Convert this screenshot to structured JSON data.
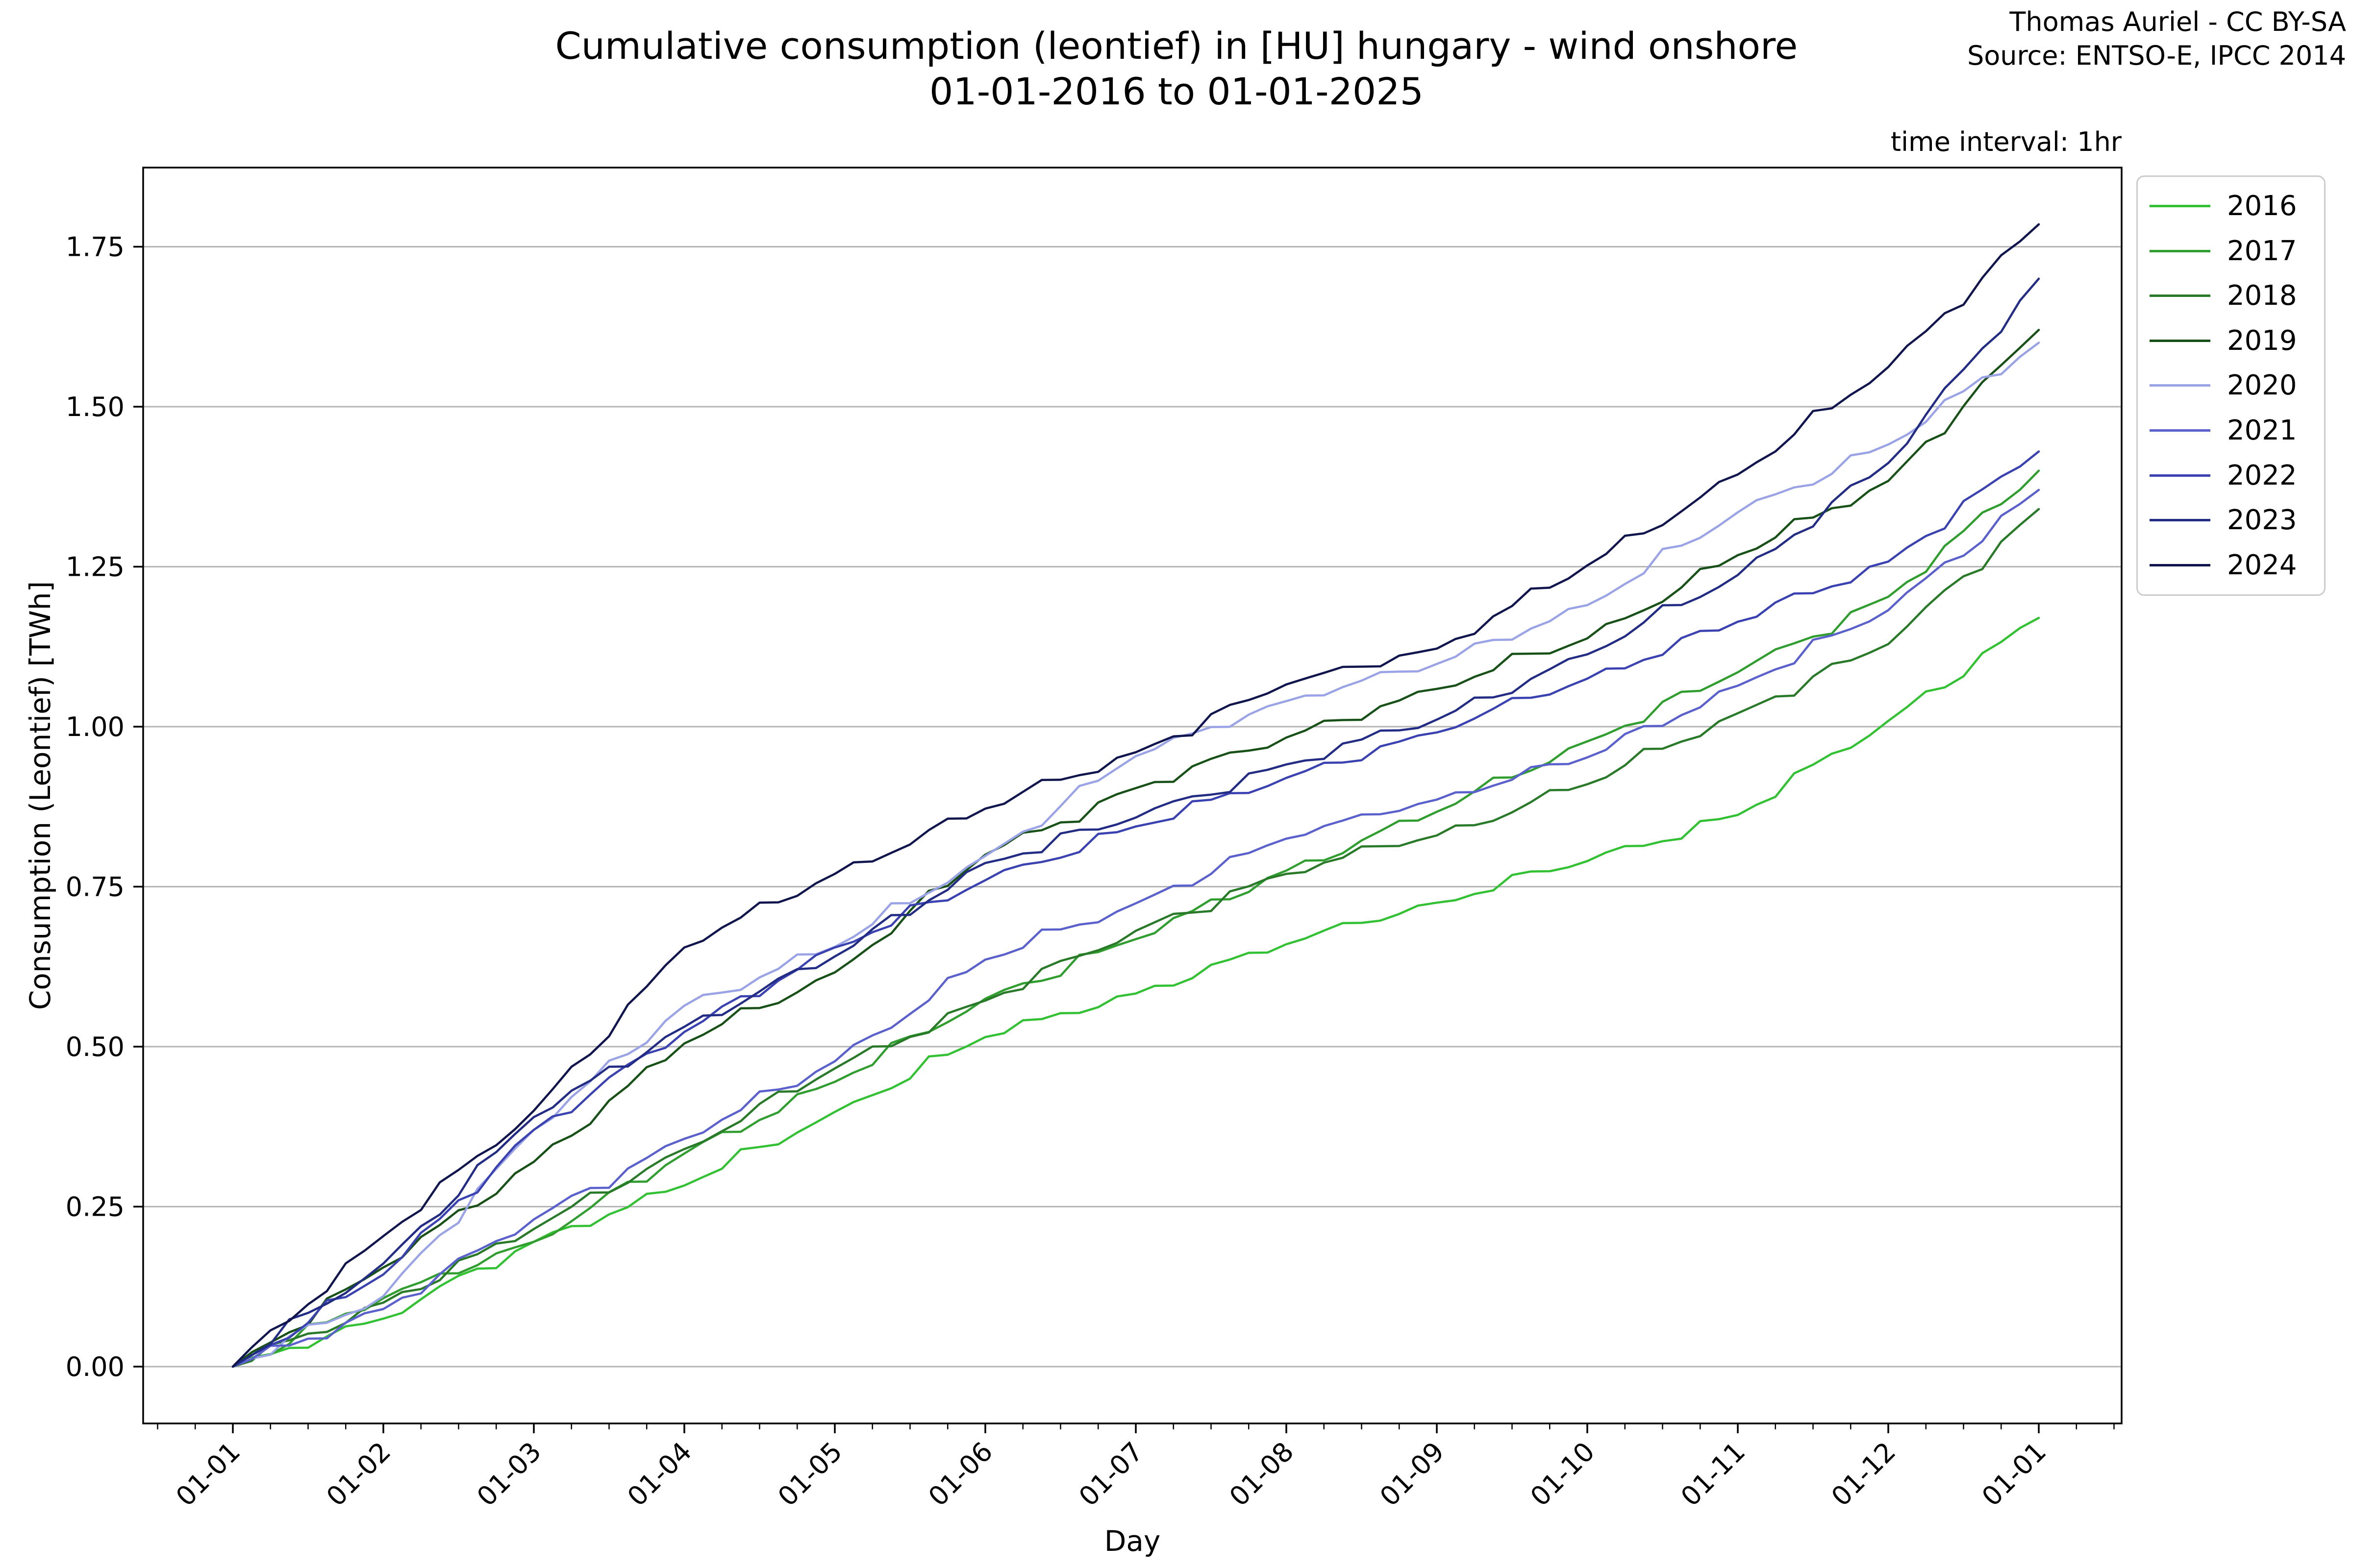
{
  "title": {
    "line1": "Cumulative consumption (leontief) in [HU] hungary - wind onshore",
    "line2": "01-01-2016 to 01-01-2025"
  },
  "attribution": {
    "line1": "Thomas Auriel - CC BY-SA",
    "line2": "Source: ENTSO-E, IPCC 2014"
  },
  "annotation": {
    "text": "time interval: 1hr"
  },
  "chart_data": {
    "type": "line",
    "title": "Cumulative consumption (leontief) in [HU] hungary - wind onshore 01-01-2016 to 01-01-2025",
    "xlabel": "Day",
    "ylabel": "Consumption (Leontief) [TWh]",
    "x_tick_labels": [
      "01-01",
      "01-02",
      "01-03",
      "01-04",
      "01-05",
      "01-06",
      "01-07",
      "01-08",
      "01-09",
      "01-10",
      "01-11",
      "01-12",
      "01-01"
    ],
    "y_ticks": [
      0.0,
      0.25,
      0.5,
      0.75,
      1.0,
      1.25,
      1.5,
      1.75
    ],
    "ylim": [
      -0.09,
      1.875
    ],
    "grid": "horizontal",
    "legend_position": "outside-upper-right",
    "grid_color": "#b4b4b4",
    "x_months": [
      0,
      1,
      2,
      3,
      4,
      5,
      6,
      7,
      8,
      9,
      10,
      11,
      12
    ],
    "series": [
      {
        "name": "2016",
        "color": "#32c132",
        "values": [
          0,
          0.075,
          0.195,
          0.283,
          0.398,
          0.515,
          0.583,
          0.66,
          0.725,
          0.79,
          0.862,
          1.009,
          1.17
        ]
      },
      {
        "name": "2017",
        "color": "#2f9e2f",
        "values": [
          0,
          0.107,
          0.195,
          0.333,
          0.445,
          0.575,
          0.668,
          0.775,
          0.867,
          0.977,
          1.085,
          1.203,
          1.4
        ]
      },
      {
        "name": "2018",
        "color": "#287a28",
        "values": [
          0,
          0.1,
          0.215,
          0.34,
          0.466,
          0.572,
          0.681,
          0.77,
          0.83,
          0.91,
          1.021,
          1.129,
          1.34
        ]
      },
      {
        "name": "2019",
        "color": "#175117",
        "values": [
          0,
          0.155,
          0.32,
          0.505,
          0.616,
          0.8,
          0.904,
          0.983,
          1.059,
          1.138,
          1.268,
          1.384,
          1.62
        ]
      },
      {
        "name": "2020",
        "color": "#9aa3e6",
        "values": [
          0,
          0.11,
          0.37,
          0.564,
          0.656,
          0.798,
          0.954,
          1.04,
          1.098,
          1.19,
          1.335,
          1.441,
          1.6
        ]
      },
      {
        "name": "2021",
        "color": "#5a60cc",
        "values": [
          0,
          0.09,
          0.23,
          0.356,
          0.477,
          0.636,
          0.724,
          0.825,
          0.886,
          0.952,
          1.064,
          1.182,
          1.37
        ]
      },
      {
        "name": "2022",
        "color": "#3a41b0",
        "values": [
          0,
          0.144,
          0.37,
          0.523,
          0.655,
          0.76,
          0.844,
          0.92,
          0.991,
          1.075,
          1.164,
          1.258,
          1.43
        ]
      },
      {
        "name": "2023",
        "color": "#232c85",
        "values": [
          0,
          0.161,
          0.39,
          0.531,
          0.641,
          0.787,
          0.858,
          0.941,
          1.011,
          1.113,
          1.237,
          1.412,
          1.7
        ]
      },
      {
        "name": "2024",
        "color": "#10154e",
        "values": [
          0,
          0.204,
          0.4,
          0.655,
          0.77,
          0.872,
          0.96,
          1.066,
          1.122,
          1.252,
          1.394,
          1.562,
          1.785
        ]
      }
    ]
  }
}
